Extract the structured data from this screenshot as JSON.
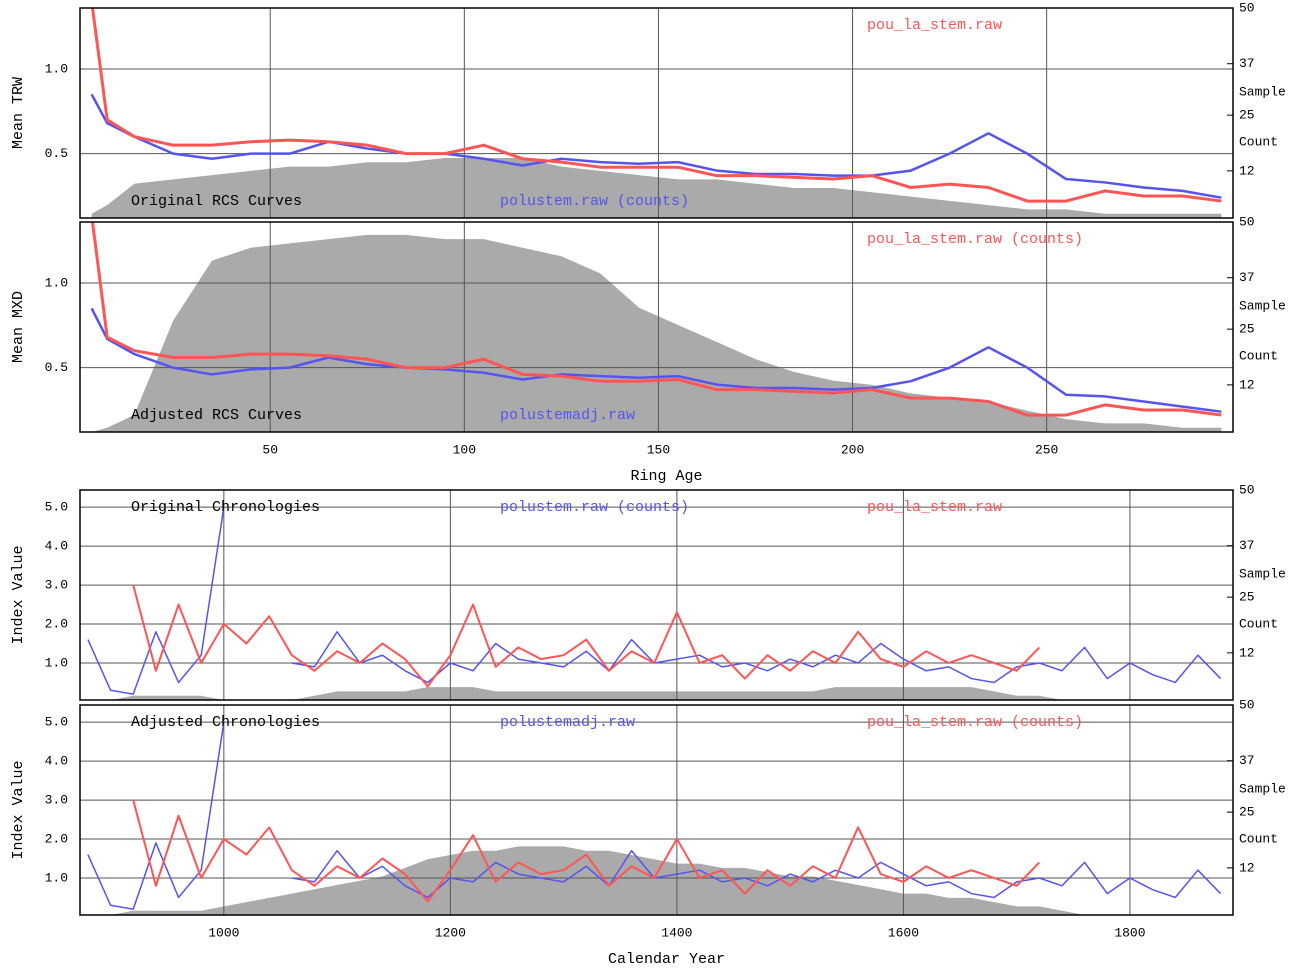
{
  "chart_data": [
    {
      "type": "line",
      "ylabel": "Mean TRW",
      "y2label": [
        "Sample",
        "Count"
      ],
      "panel_label": "Original RCS Curves",
      "panel_label_pos": "bottom",
      "x": [
        4,
        8,
        15,
        25,
        35,
        45,
        55,
        65,
        75,
        85,
        95,
        105,
        115,
        125,
        135,
        145,
        155,
        165,
        175,
        185,
        195,
        205,
        215,
        225,
        235,
        245,
        255,
        265,
        275,
        285,
        295
      ],
      "xlim": [
        1,
        298
      ],
      "xticks": [
        50,
        100,
        150,
        200,
        250
      ],
      "ylim": [
        0.12,
        1.36
      ],
      "yticks": [
        0.5,
        {
          "value": 1,
          "label": "1.0"
        }
      ],
      "y2lim": [
        1,
        50
      ],
      "y2ticks": [
        12,
        25,
        37,
        50
      ],
      "grid": true,
      "series": [
        {
          "name": "polustem.raw (counts)",
          "color": "#5555ee",
          "legend": "bottom",
          "values": [
            0.85,
            0.68,
            0.6,
            0.5,
            0.47,
            0.5,
            0.5,
            0.57,
            0.53,
            0.5,
            0.5,
            0.47,
            0.43,
            0.47,
            0.45,
            0.44,
            0.45,
            0.4,
            0.38,
            0.38,
            0.37,
            0.37,
            0.4,
            0.5,
            0.62,
            0.5,
            0.35,
            0.33,
            0.3,
            0.28,
            0.24
          ]
        },
        {
          "name": "pou_la_stem.raw",
          "color": "#ff5555",
          "legend": "top",
          "values": [
            1.4,
            0.7,
            0.6,
            0.55,
            0.55,
            0.57,
            0.58,
            0.57,
            0.55,
            0.5,
            0.5,
            0.55,
            0.47,
            0.45,
            0.42,
            0.42,
            0.42,
            0.37,
            0.37,
            0.36,
            0.35,
            0.37,
            0.3,
            0.32,
            0.3,
            0.22,
            0.22,
            0.28,
            0.25,
            0.25,
            0.22
          ]
        },
        {
          "type": "area",
          "axis": "y2",
          "color": "#aaaaaa",
          "values": [
            2,
            4,
            9,
            10,
            11,
            12,
            13,
            13,
            14,
            14,
            15,
            15,
            15,
            13,
            12,
            11,
            10,
            10,
            9,
            8,
            8,
            7,
            6,
            5,
            4,
            3,
            3,
            2,
            2,
            2,
            2
          ]
        }
      ]
    },
    {
      "type": "line",
      "ylabel": "Mean MXD",
      "xlabel": "Ring Age",
      "y2label": [
        "Sample",
        "Count"
      ],
      "panel_label": "Adjusted RCS Curves",
      "panel_label_pos": "bottom",
      "x": [
        4,
        8,
        15,
        25,
        35,
        45,
        55,
        65,
        75,
        85,
        95,
        105,
        115,
        125,
        135,
        145,
        155,
        165,
        175,
        185,
        195,
        205,
        215,
        225,
        235,
        245,
        255,
        265,
        275,
        285,
        295
      ],
      "xlim": [
        1,
        298
      ],
      "xticks": [
        50,
        100,
        150,
        200,
        250
      ],
      "ylim": [
        0.12,
        1.36
      ],
      "yticks": [
        0.5,
        {
          "value": 1,
          "label": "1.0"
        }
      ],
      "y2lim": [
        1,
        50
      ],
      "y2ticks": [
        12,
        25,
        37,
        50
      ],
      "grid": true,
      "series": [
        {
          "name": "polustemadj.raw",
          "color": "#5555ee",
          "legend": "bottom",
          "values": [
            0.85,
            0.67,
            0.58,
            0.5,
            0.46,
            0.49,
            0.5,
            0.56,
            0.52,
            0.5,
            0.49,
            0.47,
            0.43,
            0.46,
            0.45,
            0.44,
            0.45,
            0.4,
            0.38,
            0.38,
            0.37,
            0.38,
            0.42,
            0.5,
            0.62,
            0.5,
            0.34,
            0.33,
            0.3,
            0.27,
            0.24
          ]
        },
        {
          "name": "pou_la_stem.raw (counts)",
          "color": "#ff5555",
          "legend": "top",
          "values": [
            1.4,
            0.68,
            0.6,
            0.56,
            0.56,
            0.58,
            0.58,
            0.57,
            0.55,
            0.5,
            0.5,
            0.55,
            0.46,
            0.45,
            0.42,
            0.42,
            0.43,
            0.37,
            0.37,
            0.36,
            0.35,
            0.37,
            0.32,
            0.32,
            0.3,
            0.22,
            0.22,
            0.28,
            0.25,
            0.25,
            0.22
          ]
        },
        {
          "type": "area",
          "axis": "y2",
          "color": "#aaaaaa",
          "values": [
            1,
            2,
            5,
            27,
            41,
            44,
            45,
            46,
            47,
            47,
            46,
            46,
            44,
            42,
            38,
            30,
            26,
            22,
            18,
            15,
            13,
            12,
            10,
            9,
            8,
            6,
            4,
            3,
            3,
            2,
            2
          ]
        }
      ]
    },
    {
      "type": "line",
      "ylabel": "Index Value",
      "y2label": [
        "Sample",
        "Count"
      ],
      "panel_label": "Original Chronologies",
      "panel_label_pos": "top",
      "x": [
        880,
        900,
        920,
        940,
        960,
        980,
        1000,
        1020,
        1040,
        1060,
        1080,
        1100,
        1120,
        1140,
        1160,
        1180,
        1200,
        1220,
        1240,
        1260,
        1280,
        1300,
        1320,
        1340,
        1360,
        1380,
        1400,
        1420,
        1440,
        1460,
        1480,
        1500,
        1520,
        1540,
        1560,
        1580,
        1600,
        1620,
        1640,
        1660,
        1680,
        1700,
        1720,
        1740,
        1760,
        1780,
        1800,
        1820,
        1840,
        1860,
        1880
      ],
      "xlim": [
        873,
        1891
      ],
      "xticks": [
        1000,
        1200,
        1400,
        1600,
        1800
      ],
      "ylim": [
        0.05,
        5.44
      ],
      "yticks": [
        {
          "value": 1,
          "label": "1.0"
        },
        {
          "value": 2,
          "label": "2.0"
        },
        {
          "value": 3,
          "label": "3.0"
        },
        {
          "value": 4,
          "label": "4.0"
        },
        {
          "value": 5,
          "label": "5.0"
        }
      ],
      "y2lim": [
        1,
        50
      ],
      "y2ticks": [
        12,
        25,
        37,
        50
      ],
      "grid": true,
      "series": [
        {
          "name": "polustem.raw (counts)",
          "color": "#5555ee",
          "legend": "top",
          "values": [
            1.6,
            0.3,
            0.2,
            1.8,
            0.5,
            1.2,
            5.0,
            null,
            null,
            1.0,
            0.9,
            1.8,
            1.0,
            1.2,
            0.8,
            0.5,
            1.0,
            0.8,
            1.5,
            1.1,
            1.0,
            0.9,
            1.3,
            0.8,
            1.6,
            1.0,
            1.1,
            1.2,
            0.9,
            1.0,
            0.8,
            1.1,
            0.9,
            1.2,
            1.0,
            1.5,
            1.1,
            0.8,
            0.9,
            0.6,
            0.5,
            0.9,
            1.0,
            0.8,
            1.4,
            0.6,
            1.0,
            0.7,
            0.5,
            1.2,
            0.6
          ]
        },
        {
          "name": "pou_la_stem.raw",
          "color": "#ff5555",
          "legend": "top",
          "values": [
            null,
            null,
            3.0,
            0.8,
            2.5,
            1.0,
            2.0,
            1.5,
            2.2,
            1.2,
            0.8,
            1.3,
            1.0,
            1.5,
            1.1,
            0.4,
            1.2,
            2.5,
            0.9,
            1.4,
            1.1,
            1.2,
            1.6,
            0.8,
            1.3,
            1.0,
            2.3,
            1.0,
            1.2,
            0.6,
            1.2,
            0.8,
            1.3,
            1.0,
            1.8,
            1.1,
            0.9,
            1.3,
            1.0,
            1.2,
            1.0,
            0.8,
            1.4,
            null,
            null,
            null,
            null,
            null,
            null,
            null,
            null
          ]
        },
        {
          "type": "area",
          "axis": "y2",
          "color": "#aaaaaa",
          "values": [
            1,
            1,
            2,
            2,
            2,
            2,
            1,
            1,
            1,
            1,
            2,
            3,
            3,
            3,
            3,
            4,
            4,
            4,
            3,
            3,
            3,
            3,
            3,
            3,
            3,
            3,
            3,
            3,
            3,
            3,
            3,
            3,
            3,
            4,
            4,
            4,
            4,
            4,
            4,
            4,
            3,
            2,
            2,
            1,
            1,
            1,
            1,
            1,
            1,
            1,
            1
          ]
        }
      ]
    },
    {
      "type": "line",
      "ylabel": "Index Value",
      "xlabel": "Calendar Year",
      "y2label": [
        "Sample",
        "Count"
      ],
      "panel_label": "Adjusted Chronologies",
      "panel_label_pos": "top",
      "x": [
        880,
        900,
        920,
        940,
        960,
        980,
        1000,
        1020,
        1040,
        1060,
        1080,
        1100,
        1120,
        1140,
        1160,
        1180,
        1200,
        1220,
        1240,
        1260,
        1280,
        1300,
        1320,
        1340,
        1360,
        1380,
        1400,
        1420,
        1440,
        1460,
        1480,
        1500,
        1520,
        1540,
        1560,
        1580,
        1600,
        1620,
        1640,
        1660,
        1680,
        1700,
        1720,
        1740,
        1760,
        1780,
        1800,
        1820,
        1840,
        1860,
        1880
      ],
      "xlim": [
        873,
        1891
      ],
      "xticks": [
        1000,
        1200,
        1400,
        1600,
        1800
      ],
      "ylim": [
        0.05,
        5.44
      ],
      "yticks": [
        {
          "value": 1,
          "label": "1.0"
        },
        {
          "value": 2,
          "label": "2.0"
        },
        {
          "value": 3,
          "label": "3.0"
        },
        {
          "value": 4,
          "label": "4.0"
        },
        {
          "value": 5,
          "label": "5.0"
        }
      ],
      "y2lim": [
        1,
        50
      ],
      "y2ticks": [
        12,
        25,
        37,
        50
      ],
      "grid": true,
      "series": [
        {
          "name": "polustemadj.raw",
          "color": "#5555ee",
          "legend": "top",
          "values": [
            1.6,
            0.3,
            0.2,
            1.9,
            0.5,
            1.2,
            5.0,
            null,
            null,
            1.0,
            0.9,
            1.7,
            1.0,
            1.3,
            0.8,
            0.5,
            1.0,
            0.9,
            1.4,
            1.1,
            1.0,
            0.9,
            1.3,
            0.8,
            1.7,
            1.0,
            1.1,
            1.2,
            0.9,
            1.0,
            0.8,
            1.1,
            0.9,
            1.2,
            1.0,
            1.4,
            1.1,
            0.8,
            0.9,
            0.6,
            0.5,
            0.9,
            1.0,
            0.8,
            1.4,
            0.6,
            1.0,
            0.7,
            0.5,
            1.2,
            0.6
          ]
        },
        {
          "name": "pou_la_stem.raw (counts)",
          "color": "#ff5555",
          "legend": "top",
          "values": [
            null,
            null,
            3.0,
            0.8,
            2.6,
            1.0,
            2.0,
            1.6,
            2.3,
            1.2,
            0.8,
            1.3,
            1.0,
            1.5,
            1.1,
            0.4,
            1.2,
            2.1,
            0.9,
            1.4,
            1.1,
            1.2,
            1.6,
            0.8,
            1.3,
            1.0,
            2.0,
            1.0,
            1.2,
            0.6,
            1.2,
            0.8,
            1.3,
            1.0,
            2.3,
            1.1,
            0.9,
            1.3,
            1.0,
            1.2,
            1.0,
            0.8,
            1.4,
            null,
            null,
            null,
            null,
            null,
            null,
            null,
            null
          ]
        },
        {
          "type": "area",
          "axis": "y2",
          "color": "#aaaaaa",
          "values": [
            1,
            1,
            2,
            2,
            2,
            2,
            3,
            4,
            5,
            6,
            7,
            8,
            9,
            10,
            12,
            14,
            15,
            16,
            16,
            17,
            17,
            17,
            16,
            16,
            15,
            14,
            13,
            13,
            12,
            12,
            11,
            10,
            10,
            9,
            8,
            7,
            6,
            6,
            5,
            5,
            4,
            3,
            3,
            2,
            1,
            1,
            1,
            1,
            1,
            1,
            1
          ]
        }
      ]
    }
  ]
}
